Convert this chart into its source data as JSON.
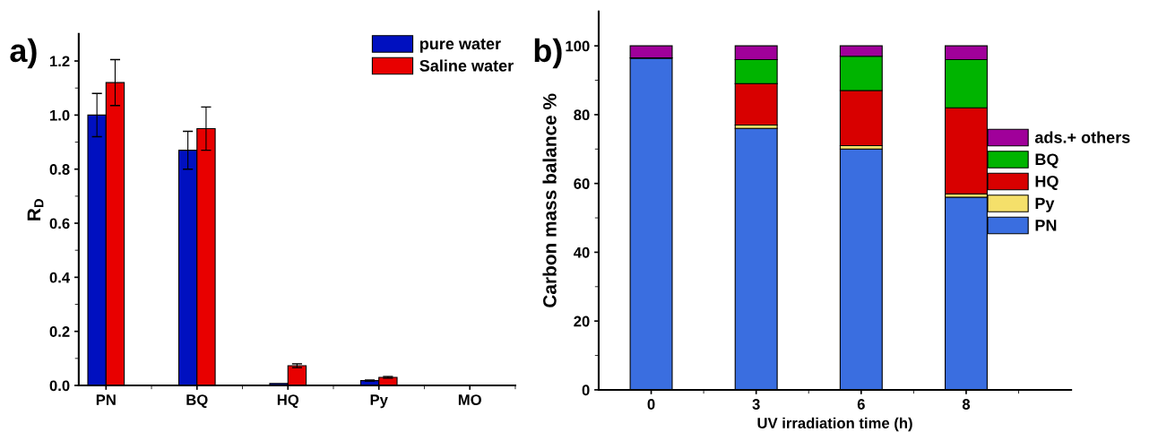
{
  "chart_data": [
    {
      "type": "bar",
      "annotations": [
        "a)"
      ],
      "ylabel": "R$_{D}$",
      "categories": [
        "PN",
        "BQ",
        "HQ",
        "Py",
        "MO"
      ],
      "ylim": [
        0,
        1.3
      ],
      "yticks": [
        {
          "value": 0,
          "label": "0.0"
        },
        0.2,
        0.4,
        0.6,
        0.8,
        {
          "value": 1,
          "label": "1.0"
        },
        1.2
      ],
      "legend": "top right",
      "grid": false,
      "series": [
        {
          "name": "pure water",
          "color": "#0010c0",
          "values": [
            1.0,
            0.87,
            0.007,
            0.018,
            null
          ],
          "errors": [
            0.08,
            0.07,
            null,
            0.002,
            null
          ]
        },
        {
          "name": "Saline water",
          "color": "#e80000",
          "values": [
            1.12,
            0.95,
            0.073,
            0.03,
            null
          ],
          "errors": [
            0.085,
            0.08,
            0.007,
            0.003,
            null
          ]
        }
      ]
    },
    {
      "type": "bar",
      "stacked": true,
      "annotations": [
        "b)"
      ],
      "xlabel": "UV irradiation time (h)",
      "ylabel": "Carbon mass balance %",
      "categories": [
        "0",
        "3",
        "6",
        "8"
      ],
      "ylim": [
        0,
        110
      ],
      "yticks": [
        0,
        20,
        40,
        60,
        80,
        100
      ],
      "legend": "right",
      "grid": false,
      "series": [
        {
          "name": "PN",
          "color": "#3a6ee0",
          "values": [
            96.5,
            76,
            70,
            56
          ]
        },
        {
          "name": "Py",
          "color": "#f5e06a",
          "values": [
            0,
            1,
            1,
            1
          ]
        },
        {
          "name": "HQ",
          "color": "#d80000",
          "values": [
            0,
            12,
            16,
            25
          ]
        },
        {
          "name": "BQ",
          "color": "#00b400",
          "values": [
            0,
            7,
            10,
            14
          ]
        },
        {
          "name": "ads.+ others",
          "color": "#a0009a",
          "values": [
            3.5,
            4,
            3,
            4
          ]
        }
      ]
    }
  ]
}
